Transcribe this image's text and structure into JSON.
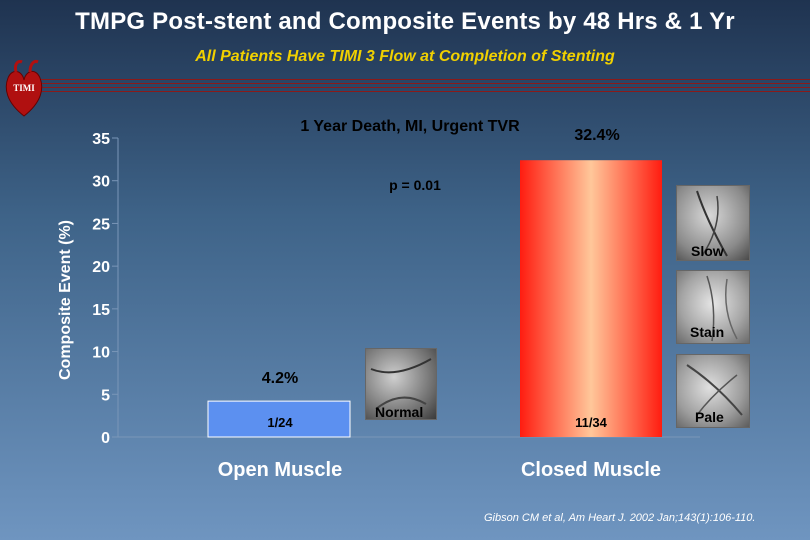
{
  "title": "TMPG Post-stent and Composite Events by 48 Hrs & 1 Yr",
  "subtitle": "All Patients Have TIMI 3 Flow at Completion of Stenting",
  "logo_text": "TIMI",
  "citation": "Gibson CM et al, Am Heart J. 2002 Jan;143(1):106-110.",
  "image_labels": {
    "normal": "Normal",
    "slow": "Slow",
    "stain": "Stain",
    "pale": "Pale"
  },
  "colors": {
    "open_bar": "#5c90f0",
    "closed_bar_edge": "#ff1c10",
    "closed_bar_center": "#ffc79a"
  },
  "chart_data": {
    "type": "bar",
    "title": "1 Year Death, MI, Urgent TVR",
    "ylabel": "Composite Event (%)",
    "ylim": [
      0,
      35
    ],
    "yticks": [
      0,
      5,
      10,
      15,
      20,
      25,
      30,
      35
    ],
    "categories": [
      "Open Muscle",
      "Closed Muscle"
    ],
    "values": [
      4.2,
      32.4
    ],
    "value_labels": [
      "4.2%",
      "32.4%"
    ],
    "fraction_labels": [
      "1/24",
      "11/34"
    ],
    "p_value": "p = 0.01"
  }
}
